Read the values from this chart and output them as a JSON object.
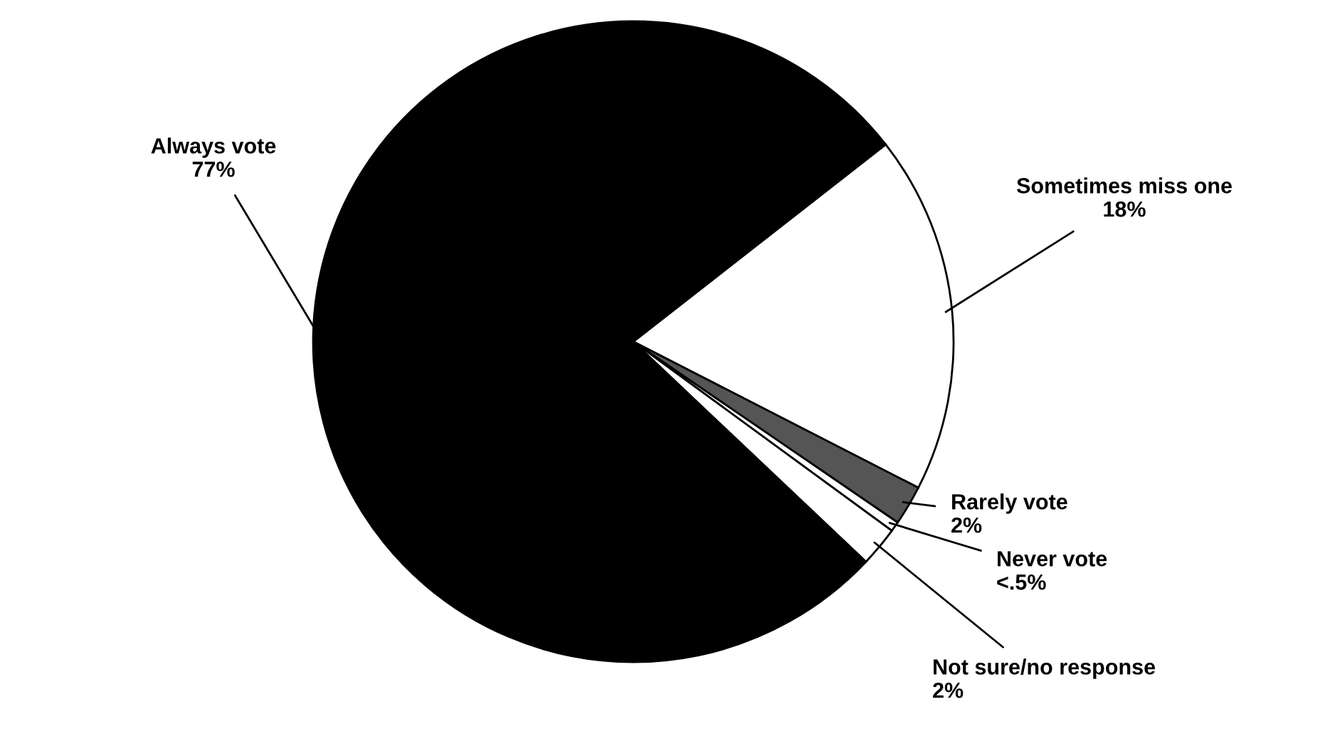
{
  "chart_data": {
    "type": "pie",
    "categories": [
      "Sometimes miss one",
      "Rarely vote",
      "Never vote",
      "Not sure/no response",
      "Always vote"
    ],
    "values": [
      18,
      2,
      0.5,
      2,
      77
    ],
    "value_labels": [
      "18%",
      "2%",
      "<.5%",
      "2%",
      "77%"
    ],
    "colors": [
      "#ffffff",
      "#555555",
      "#ffffff",
      "#ffffff",
      "#000000"
    ],
    "legend": false
  }
}
